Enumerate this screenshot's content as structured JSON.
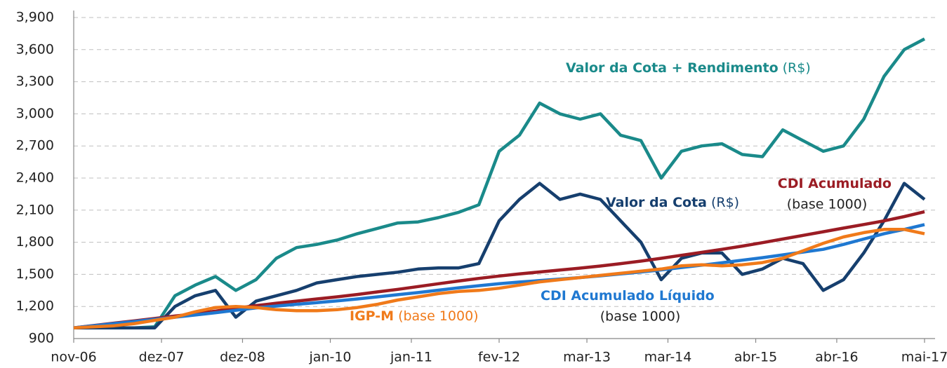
{
  "chart_data": {
    "type": "line",
    "x": [
      "2006-11",
      "2007-02",
      "2007-05",
      "2007-08",
      "2007-11",
      "2008-02",
      "2008-05",
      "2008-08",
      "2008-11",
      "2009-02",
      "2009-05",
      "2009-08",
      "2009-11",
      "2010-02",
      "2010-05",
      "2010-08",
      "2010-11",
      "2011-02",
      "2011-05",
      "2011-08",
      "2011-11",
      "2012-02",
      "2012-05",
      "2012-08",
      "2012-11",
      "2013-02",
      "2013-05",
      "2013-08",
      "2013-11",
      "2014-02",
      "2014-05",
      "2014-08",
      "2014-11",
      "2015-02",
      "2015-05",
      "2015-08",
      "2015-11",
      "2016-02",
      "2016-05",
      "2016-08",
      "2016-11",
      "2017-02",
      "2017-05"
    ],
    "xlim": [
      "2006-11",
      "2017-05"
    ],
    "xticks": [
      {
        "value": "2006-11",
        "label": "nov-06"
      },
      {
        "value": "2007-12",
        "label": "dez-07"
      },
      {
        "value": "2008-12",
        "label": "dez-08"
      },
      {
        "value": "2010-01",
        "label": "jan-10"
      },
      {
        "value": "2011-01",
        "label": "jan-11"
      },
      {
        "value": "2012-02",
        "label": "fev-12"
      },
      {
        "value": "2013-03",
        "label": "mar-13"
      },
      {
        "value": "2014-03",
        "label": "mar-14"
      },
      {
        "value": "2015-04",
        "label": "abr-15"
      },
      {
        "value": "2016-04",
        "label": "abr-16"
      },
      {
        "value": "2017-05",
        "label": "mai-17"
      }
    ],
    "ylim": [
      900,
      3900
    ],
    "yticks": [
      900,
      {
        "value": 1200,
        "label": "1,200"
      },
      {
        "value": 1500,
        "label": "1,500"
      },
      {
        "value": 1800,
        "label": "1,800"
      },
      {
        "value": 2100,
        "label": "2,100"
      },
      {
        "value": 2400,
        "label": "2,400"
      },
      {
        "value": 2700,
        "label": "2,700"
      },
      {
        "value": 3000,
        "label": "3,000"
      },
      {
        "value": 3300,
        "label": "3,300"
      },
      {
        "value": 3600,
        "label": "3,600"
      },
      {
        "value": 3900,
        "label": "3,900"
      }
    ],
    "grid": true,
    "series": [
      {
        "name": "Valor da Cota + Rendimento",
        "note": "(R$)",
        "color": "#1a8a8a",
        "values": [
          1000,
          1000,
          1000,
          1000,
          1010,
          1300,
          1400,
          1480,
          1350,
          1450,
          1650,
          1750,
          1780,
          1820,
          1880,
          1930,
          1980,
          1990,
          2030,
          2080,
          2150,
          2650,
          2800,
          3100,
          3000,
          2950,
          3000,
          2800,
          2750,
          2400,
          2650,
          2700,
          2720,
          2620,
          2600,
          2850,
          2750,
          2650,
          2700,
          2950,
          3350,
          3600,
          3700
        ]
      },
      {
        "name": "Valor da Cota",
        "note": "(R$)",
        "color": "#163f6e",
        "values": [
          1000,
          1000,
          1000,
          1000,
          1000,
          1200,
          1300,
          1350,
          1100,
          1250,
          1300,
          1350,
          1420,
          1450,
          1480,
          1500,
          1520,
          1550,
          1560,
          1560,
          1600,
          2000,
          2200,
          2350,
          2200,
          2250,
          2200,
          2000,
          1800,
          1450,
          1650,
          1700,
          1700,
          1500,
          1550,
          1650,
          1600,
          1350,
          1450,
          1700,
          2000,
          2350,
          2200
        ]
      },
      {
        "name": "CDI Acumulado",
        "note": "(base 1000)",
        "color": "#9b1c24",
        "values": [
          1000,
          1022,
          1044,
          1066,
          1088,
          1110,
          1132,
          1156,
          1182,
          1208,
          1230,
          1250,
          1270,
          1290,
          1312,
          1336,
          1360,
          1386,
          1412,
          1438,
          1462,
          1484,
          1504,
          1522,
          1540,
          1558,
          1578,
          1600,
          1624,
          1650,
          1678,
          1706,
          1734,
          1764,
          1796,
          1830,
          1864,
          1898,
          1932,
          1966,
          2000,
          2040,
          2085
        ]
      },
      {
        "name": "CDI Acumulado Líquido",
        "note": "(base 1000)",
        "color": "#1f78d1",
        "values": [
          1000,
          1020,
          1040,
          1060,
          1080,
          1100,
          1120,
          1142,
          1164,
          1186,
          1204,
          1220,
          1236,
          1252,
          1270,
          1290,
          1310,
          1330,
          1352,
          1374,
          1394,
          1412,
          1428,
          1442,
          1456,
          1470,
          1486,
          1504,
          1522,
          1542,
          1564,
          1586,
          1608,
          1632,
          1656,
          1682,
          1708,
          1734,
          1780,
          1830,
          1880,
          1920,
          1965
        ]
      },
      {
        "name": "IGP-M",
        "note": "(base 1000)",
        "color": "#f07a1a",
        "values": [
          1000,
          1010,
          1020,
          1040,
          1070,
          1100,
          1150,
          1190,
          1200,
          1190,
          1170,
          1160,
          1160,
          1170,
          1190,
          1220,
          1260,
          1290,
          1320,
          1340,
          1350,
          1370,
          1400,
          1430,
          1450,
          1470,
          1490,
          1510,
          1530,
          1550,
          1580,
          1590,
          1580,
          1590,
          1610,
          1650,
          1720,
          1790,
          1850,
          1890,
          1920,
          1920,
          1880
        ]
      }
    ]
  }
}
